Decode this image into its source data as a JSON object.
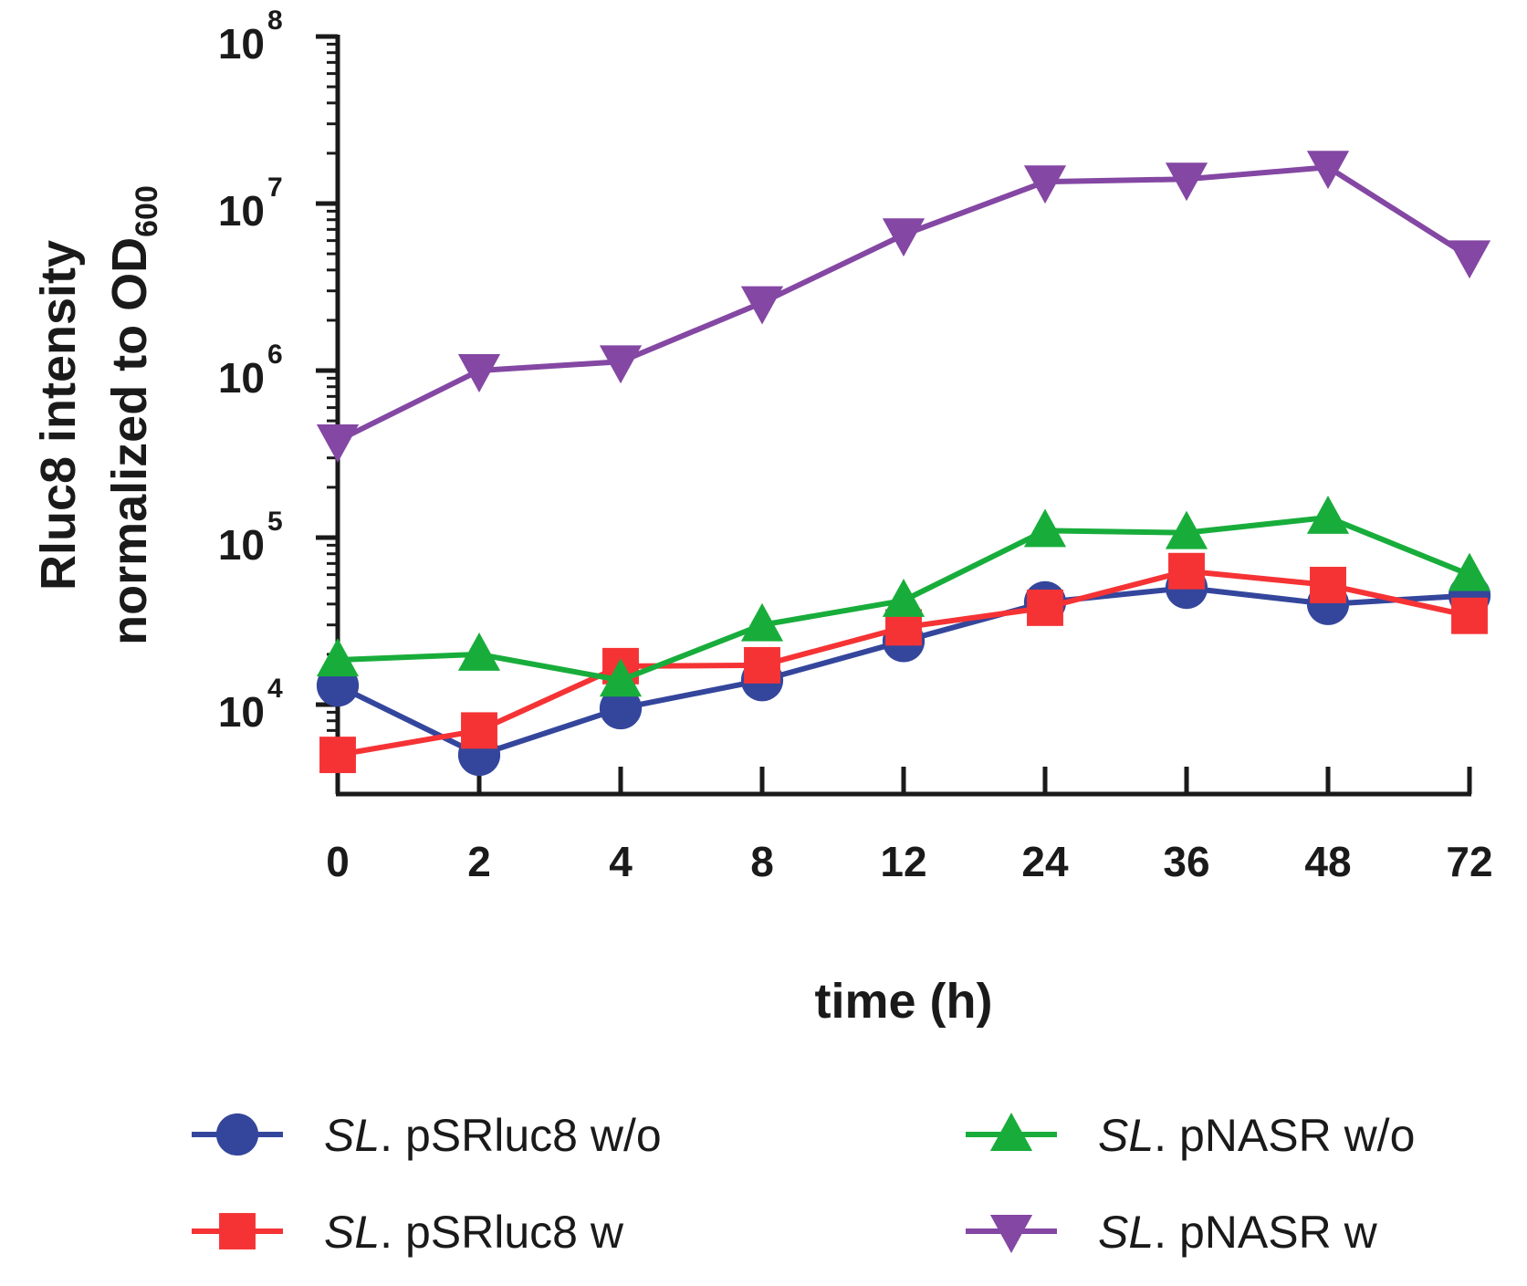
{
  "chart_data": {
    "type": "line",
    "title": "",
    "xlabel": "time (h)",
    "ylabel_line1": "Rluc8 intensity",
    "ylabel_line2": "normalized to OD",
    "ylabel_sub": "600",
    "yscale": "log",
    "ylim": [
      4000,
      100000000
    ],
    "categories": [
      "0",
      "2",
      "4",
      "8",
      "12",
      "24",
      "36",
      "48",
      "72"
    ],
    "y_ticks": [
      {
        "base": "10",
        "exp": "4",
        "value": 10000
      },
      {
        "base": "10",
        "exp": "5",
        "value": 100000
      },
      {
        "base": "10",
        "exp": "6",
        "value": 1000000
      },
      {
        "base": "10",
        "exp": "7",
        "value": 10000000
      },
      {
        "base": "10",
        "exp": "8",
        "value": 100000000
      }
    ],
    "grid": false,
    "legend_position": "bottom",
    "series": [
      {
        "prefix": "SL",
        "name": "pSRluc8 w/o",
        "color": "#34469c",
        "marker": "circle",
        "values": [
          13000,
          5000,
          9500,
          14000,
          24000,
          41000,
          50000,
          40000,
          45000
        ]
      },
      {
        "prefix": "SL",
        "name": "pSRluc8 w",
        "color": "#f53335",
        "marker": "square",
        "values": [
          5000,
          7000,
          17000,
          17200,
          29000,
          38000,
          63000,
          52000,
          34000
        ]
      },
      {
        "prefix": "SL",
        "name": "pNASR w/o",
        "color": "#18ad3b",
        "marker": "triangle-up",
        "values": [
          18500,
          20000,
          14000,
          30000,
          42000,
          110000,
          107000,
          132000,
          60000
        ]
      },
      {
        "prefix": "SL",
        "name": "pNASR w",
        "color": "#8447a3",
        "marker": "triangle-down",
        "values": [
          380000,
          1000000,
          1130000,
          2550000,
          6500000,
          13500000,
          14000000,
          16500000,
          4800000
        ]
      }
    ]
  }
}
